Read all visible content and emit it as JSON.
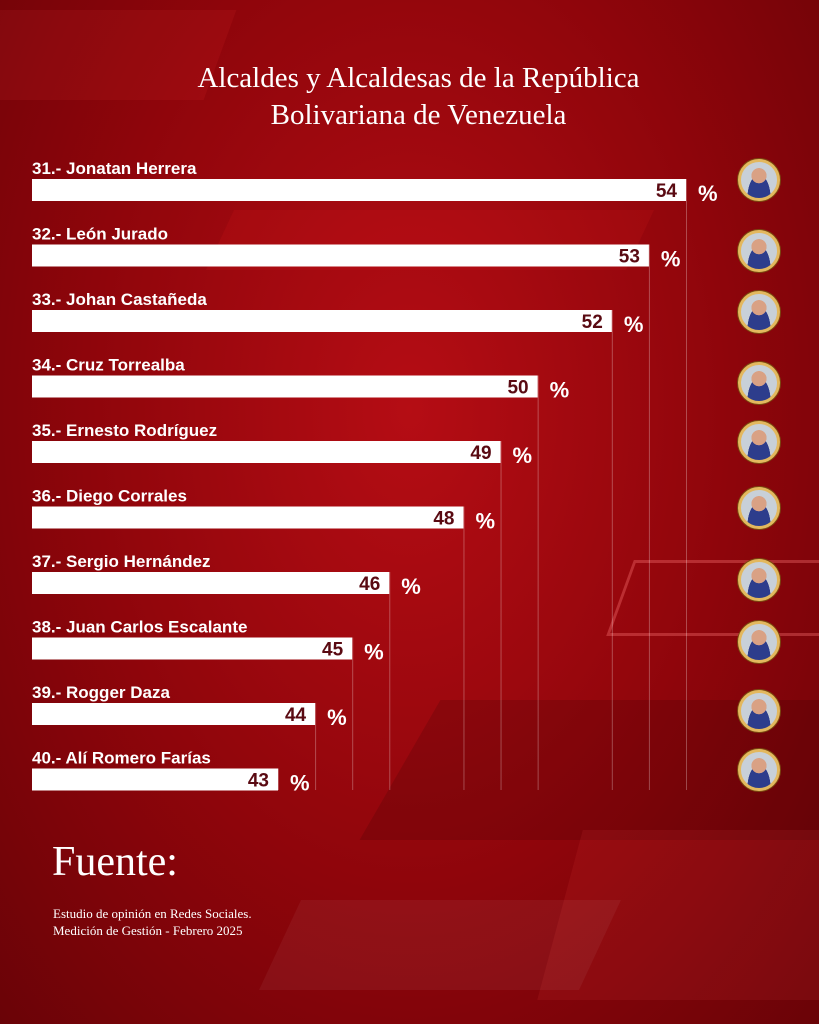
{
  "header": {
    "title_line1": "Alcaldes y Alcaldesas de la República",
    "title_line2": "Bolivariana de Venezuela"
  },
  "chart_data": {
    "type": "bar",
    "orientation": "horizontal",
    "categories": [
      "31.- Jonatan Herrera",
      "32.- León Jurado",
      "33.- Johan Castañeda",
      "34.- Cruz Torrealba",
      "35.- Ernesto Rodríguez",
      "36.- Diego Corrales",
      "37.- Sergio Hernández",
      "38.- Juan Carlos Escalante",
      "39.- Rogger Daza",
      "40.- Alí Romero Farías"
    ],
    "values": [
      54,
      53,
      52,
      50,
      49,
      48,
      46,
      45,
      44,
      43
    ],
    "value_suffix": "%",
    "bar_color": "#ffffff",
    "label_color": "#ffffff",
    "value_color": "#5a0a12",
    "avatar_ring_color": "#e3b85e"
  },
  "source": {
    "heading": "Fuente:",
    "line1": "Estudio de opinión en Redes Sociales.",
    "line2": "Medición de Gestión - Febrero 2025"
  }
}
